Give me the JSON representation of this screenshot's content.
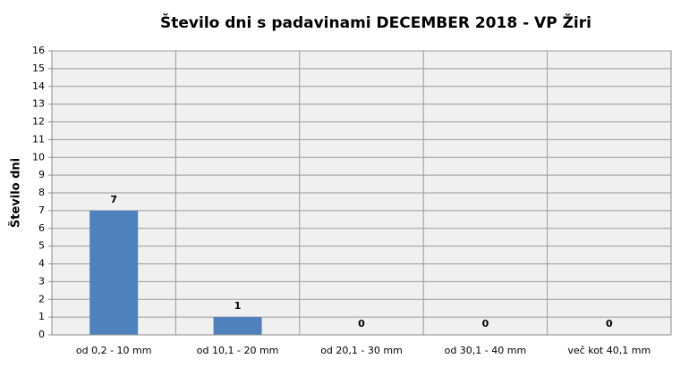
{
  "chart_data": {
    "type": "bar",
    "title": "Število dni s padavinami  DECEMBER 2018 - VP Žiri",
    "y_label": "Število dni",
    "categories": [
      "od 0,2 - 10 mm",
      "od 10,1 - 20 mm",
      "od 20,1 - 30 mm",
      "od 30,1 - 40 mm",
      "več kot 40,1 mm"
    ],
    "values": [
      7,
      1,
      0,
      0,
      0
    ],
    "color": "#4f81bd",
    "ylim": [
      0,
      16
    ],
    "yticks": [
      0,
      1,
      2,
      3,
      4,
      5,
      6,
      7,
      8,
      9,
      10,
      11,
      12,
      13,
      14,
      15,
      16
    ],
    "grid": true
  }
}
